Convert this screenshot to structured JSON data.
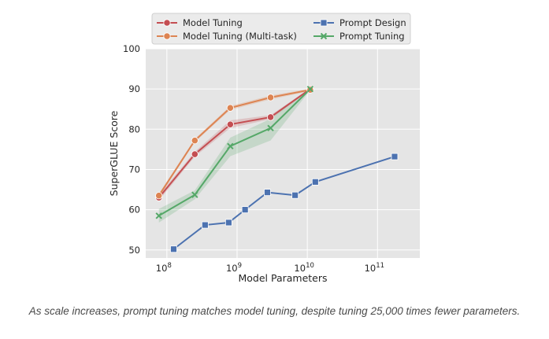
{
  "chart_data": {
    "type": "line",
    "xlabel": "Model Parameters",
    "ylabel": "SuperGLUE Score",
    "x_scale": "log",
    "xlim": [
      50000000,
      400000000000
    ],
    "ylim": [
      48,
      100
    ],
    "x_ticks": [
      {
        "value": 100000000,
        "base": "10",
        "exp": "8"
      },
      {
        "value": 1000000000,
        "base": "10",
        "exp": "9"
      },
      {
        "value": 10000000000,
        "base": "10",
        "exp": "10"
      },
      {
        "value": 100000000000,
        "base": "10",
        "exp": "11"
      }
    ],
    "y_ticks": [
      50,
      60,
      70,
      80,
      90,
      100
    ],
    "grid": true,
    "legend_position": "top",
    "series": [
      {
        "name": "Model Tuning",
        "color": "#c44e52",
        "marker": "circle",
        "x": [
          77000000,
          250000000,
          800000000,
          3000000000,
          11000000000
        ],
        "y": [
          63,
          73.8,
          81.2,
          83,
          90
        ],
        "lower": [
          62.3,
          73.2,
          80.3,
          82.5,
          89.8
        ],
        "upper": [
          63.7,
          74.4,
          82.2,
          83.5,
          90.2
        ]
      },
      {
        "name": "Model Tuning (Multi-task)",
        "color": "#dd8452",
        "marker": "circle",
        "x": [
          77000000,
          250000000,
          800000000,
          3000000000,
          11000000000
        ],
        "y": [
          63.5,
          77.2,
          85.3,
          87.9,
          89.8
        ],
        "lower": [
          63,
          76.8,
          84.8,
          87.4,
          89.5
        ],
        "upper": [
          64,
          77.6,
          85.8,
          88.4,
          90.1
        ]
      },
      {
        "name": "Prompt Design",
        "color": "#4c72b0",
        "marker": "square",
        "x": [
          125000000,
          350000000,
          760000000,
          1300000000,
          2700000000,
          6700000000,
          13000000000,
          175000000000
        ],
        "y": [
          50.2,
          56.2,
          56.8,
          60,
          64.3,
          63.6,
          66.9,
          73.2
        ]
      },
      {
        "name": "Prompt Tuning",
        "color": "#55a868",
        "marker": "x",
        "x": [
          77000000,
          250000000,
          800000000,
          3000000000,
          11000000000
        ],
        "y": [
          58.5,
          63.7,
          75.8,
          80.3,
          90
        ],
        "lower": [
          56.8,
          62.6,
          73.3,
          77.2,
          89.7
        ],
        "upper": [
          60.2,
          64.8,
          77.9,
          82.6,
          90.3
        ]
      }
    ]
  },
  "caption": "As scale increases, prompt tuning matches model tuning, despite tuning 25,000 times fewer parameters."
}
